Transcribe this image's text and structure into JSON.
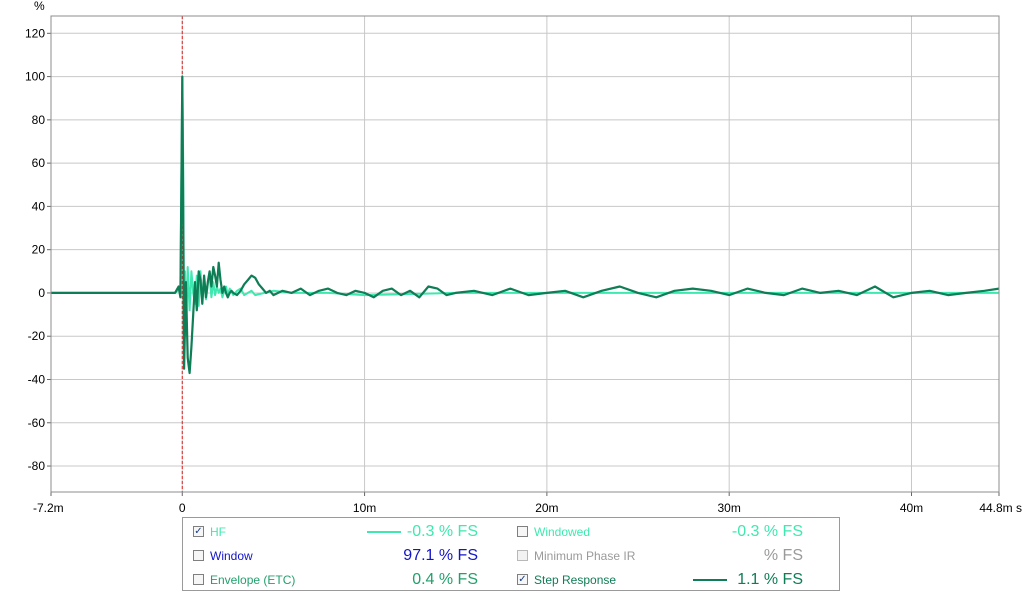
{
  "chart_data": {
    "type": "line",
    "ylabel": "%",
    "x_unit": "s",
    "xlim": [
      -0.0072,
      0.0448
    ],
    "ylim": [
      -92,
      128
    ],
    "x_ticks": [
      {
        "value": -0.0072,
        "label": "-7.2m"
      },
      {
        "value": 0,
        "label": "0"
      },
      {
        "value": 0.01,
        "label": "10m"
      },
      {
        "value": 0.02,
        "label": "20m"
      },
      {
        "value": 0.03,
        "label": "30m"
      },
      {
        "value": 0.04,
        "label": "40m"
      },
      {
        "value": 0.0448,
        "label": "44.8m s"
      }
    ],
    "y_ticks": [
      120,
      100,
      80,
      60,
      40,
      20,
      0,
      -20,
      -40,
      -60,
      -80
    ],
    "grid": true,
    "cursor_x": 0,
    "series": [
      {
        "name": "HF",
        "color": "#3ee8b0",
        "x": [
          -0.0072,
          -0.0004,
          -0.0001,
          0,
          5e-05,
          0.0001,
          0.00015,
          0.0002,
          0.0003,
          0.0004,
          0.0005,
          0.0006,
          0.0007,
          0.0008,
          0.0009,
          0.001,
          0.0011,
          0.0012,
          0.0013,
          0.0014,
          0.0015,
          0.0016,
          0.0017,
          0.0018,
          0.0019,
          0.002,
          0.0021,
          0.0022,
          0.0023,
          0.0024,
          0.0025,
          0.0026,
          0.0028,
          0.003,
          0.0032,
          0.0034,
          0.0036,
          0.0038,
          0.004,
          0.0045,
          0.005,
          0.006,
          0.008,
          0.01,
          0.015,
          0.02,
          0.025,
          0.03,
          0.035,
          0.04,
          0.0448
        ],
        "y": [
          0,
          0,
          2,
          100,
          60,
          -30,
          10,
          -20,
          12,
          -8,
          10,
          0,
          -5,
          8,
          -6,
          10,
          -4,
          6,
          -3,
          4,
          8,
          -2,
          5,
          -1,
          3,
          0,
          2,
          -2,
          1,
          3,
          -1,
          2,
          -1,
          1,
          2,
          -1,
          0,
          1,
          -1,
          0,
          1,
          0,
          0,
          -1,
          0,
          0,
          0,
          0,
          0,
          0,
          0
        ]
      },
      {
        "name": "Step Response",
        "color": "#0f7d55",
        "x": [
          -0.0072,
          -0.0004,
          -0.0002,
          -0.0001,
          0,
          5e-05,
          0.0001,
          0.0002,
          0.0003,
          0.0004,
          0.0005,
          0.0006,
          0.0007,
          0.0008,
          0.0009,
          0.001,
          0.0011,
          0.0012,
          0.0013,
          0.0014,
          0.0015,
          0.0016,
          0.0017,
          0.0018,
          0.0019,
          0.002,
          0.0021,
          0.0022,
          0.0023,
          0.0024,
          0.0025,
          0.0026,
          0.0027,
          0.0028,
          0.003,
          0.0032,
          0.0034,
          0.0036,
          0.0038,
          0.004,
          0.0042,
          0.0044,
          0.0046,
          0.0048,
          0.005,
          0.0055,
          0.006,
          0.0065,
          0.007,
          0.0075,
          0.008,
          0.0085,
          0.009,
          0.0095,
          0.01,
          0.0105,
          0.011,
          0.0115,
          0.012,
          0.0125,
          0.013,
          0.0135,
          0.014,
          0.0145,
          0.015,
          0.016,
          0.017,
          0.018,
          0.019,
          0.02,
          0.021,
          0.022,
          0.023,
          0.024,
          0.025,
          0.026,
          0.027,
          0.028,
          0.029,
          0.03,
          0.031,
          0.032,
          0.033,
          0.034,
          0.035,
          0.036,
          0.037,
          0.038,
          0.039,
          0.04,
          0.041,
          0.042,
          0.043,
          0.044,
          0.0448
        ],
        "y": [
          0,
          0,
          3,
          -2,
          100,
          40,
          -35,
          5,
          -30,
          -37,
          -25,
          -10,
          5,
          -8,
          10,
          6,
          -5,
          8,
          -2,
          5,
          10,
          3,
          12,
          8,
          3,
          14,
          6,
          0,
          3,
          0,
          -2,
          0,
          1,
          0,
          -1,
          1,
          4,
          6,
          8,
          7,
          4,
          2,
          0,
          1,
          -1,
          1,
          0,
          2,
          -1,
          1,
          2,
          0,
          -1,
          1,
          0,
          -2,
          1,
          2,
          -1,
          1,
          -2,
          3,
          2,
          -1,
          0,
          1,
          -1,
          2,
          -1,
          0,
          1,
          -2,
          1,
          3,
          0,
          -2,
          1,
          2,
          1,
          -1,
          2,
          0,
          -1,
          2,
          0,
          1,
          -1,
          3,
          -2,
          0,
          1,
          -1,
          0,
          1,
          2
        ]
      }
    ]
  },
  "legend": {
    "items": [
      {
        "label": "HF",
        "checked": true,
        "value": "-0.3 % FS",
        "color": "#3ee8b0",
        "line": true
      },
      {
        "label": "Windowed",
        "checked": false,
        "value": "-0.3 % FS",
        "color": "#3ee8b0",
        "line": false
      },
      {
        "label": "Window",
        "checked": false,
        "value": "97.1 % FS",
        "color": "#1414c8",
        "line": false
      },
      {
        "label": "Minimum Phase IR",
        "checked": false,
        "value": "% FS",
        "color": "#9a9a9a",
        "line": false
      },
      {
        "label": "Envelope (ETC)",
        "checked": false,
        "value": "0.4 % FS",
        "color": "#22a06c",
        "line": false
      },
      {
        "label": "Step Response",
        "checked": true,
        "value": "1.1 % FS",
        "color": "#0f7d55",
        "line": true
      }
    ]
  }
}
